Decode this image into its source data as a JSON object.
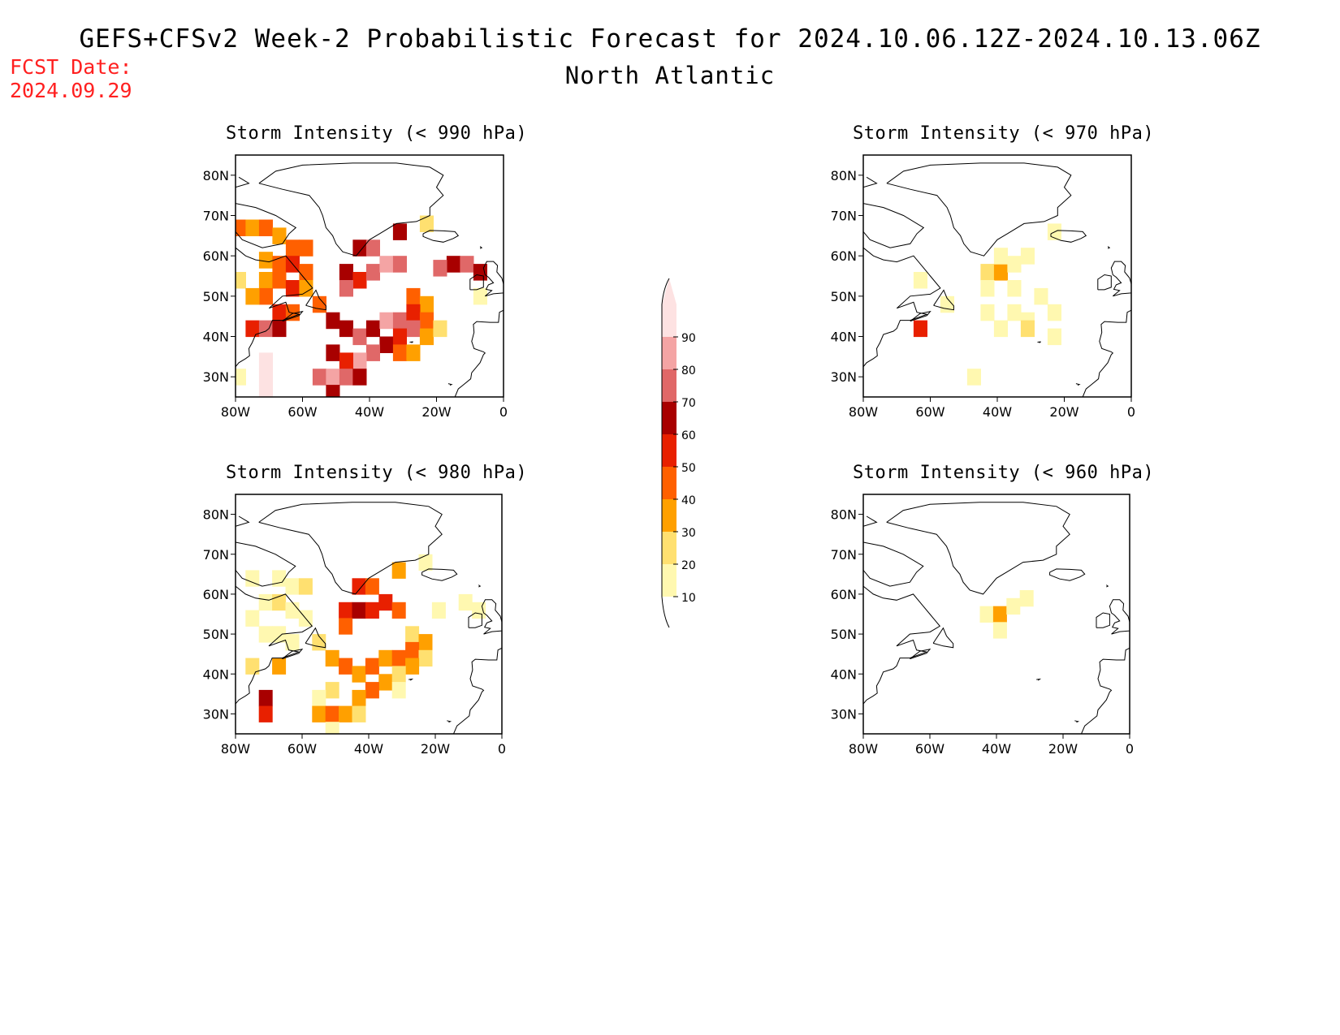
{
  "header": {
    "title": "GEFS+CFSv2 Week-2 Probabilistic Forecast for 2024.10.06.12Z-2024.10.13.06Z",
    "region": "North Atlantic",
    "fcst_label": "FCST Date:",
    "fcst_date": "2024.09.29"
  },
  "axes": {
    "lat_labels": [
      "80N",
      "70N",
      "60N",
      "50N",
      "40N",
      "30N"
    ],
    "lat_values": [
      80,
      70,
      60,
      50,
      40,
      30
    ],
    "lon_labels": [
      "80W",
      "60W",
      "40W",
      "20W",
      "0"
    ],
    "lon_values": [
      -80,
      -60,
      -40,
      -20,
      0
    ],
    "lat_range": [
      25,
      85
    ],
    "lon_range": [
      -80,
      0
    ]
  },
  "colorbar": {
    "levels": [
      10,
      20,
      30,
      40,
      50,
      60,
      70,
      80,
      90
    ],
    "level_labels": [
      "10",
      "20",
      "30",
      "40",
      "50",
      "60",
      "70",
      "80",
      "90"
    ],
    "colors": [
      "#fff8b0",
      "#ffe070",
      "#ffa000",
      "#ff6000",
      "#e82000",
      "#a80000",
      "#e06868",
      "#f4a4a4",
      "#fde2e2"
    ]
  },
  "panels": [
    {
      "title": "Storm Intensity (< 990 hPa)",
      "cells": [
        {
          "lon": -79,
          "lat": 67,
          "v": 4
        },
        {
          "lon": -75,
          "lat": 67,
          "v": 3
        },
        {
          "lon": -71,
          "lat": 67,
          "v": 4
        },
        {
          "lon": -67,
          "lat": 65,
          "v": 3
        },
        {
          "lon": -63,
          "lat": 62,
          "v": 4
        },
        {
          "lon": -59,
          "lat": 62,
          "v": 4
        },
        {
          "lon": -71,
          "lat": 59,
          "v": 3
        },
        {
          "lon": -67,
          "lat": 58,
          "v": 4
        },
        {
          "lon": -63,
          "lat": 58,
          "v": 5
        },
        {
          "lon": -59,
          "lat": 56,
          "v": 4
        },
        {
          "lon": -71,
          "lat": 54,
          "v": 3
        },
        {
          "lon": -67,
          "lat": 54,
          "v": 4
        },
        {
          "lon": -63,
          "lat": 52,
          "v": 5
        },
        {
          "lon": -59,
          "lat": 52,
          "v": 3
        },
        {
          "lon": -55,
          "lat": 48,
          "v": 4
        },
        {
          "lon": -71,
          "lat": 50,
          "v": 4
        },
        {
          "lon": -67,
          "lat": 46,
          "v": 5
        },
        {
          "lon": -63,
          "lat": 46,
          "v": 4
        },
        {
          "lon": -75,
          "lat": 42,
          "v": 5
        },
        {
          "lon": -71,
          "lat": 42,
          "v": 7
        },
        {
          "lon": -67,
          "lat": 42,
          "v": 6
        },
        {
          "lon": -71,
          "lat": 34,
          "v": 9
        },
        {
          "lon": -71,
          "lat": 30,
          "v": 9
        },
        {
          "lon": -71,
          "lat": 26,
          "v": 9
        },
        {
          "lon": -79,
          "lat": 54,
          "v": 2
        },
        {
          "lon": -75,
          "lat": 50,
          "v": 3
        },
        {
          "lon": -79,
          "lat": 30,
          "v": 1
        },
        {
          "lon": -43,
          "lat": 62,
          "v": 6
        },
        {
          "lon": -39,
          "lat": 62,
          "v": 7
        },
        {
          "lon": -31,
          "lat": 66,
          "v": 6
        },
        {
          "lon": -47,
          "lat": 56,
          "v": 6
        },
        {
          "lon": -43,
          "lat": 54,
          "v": 5
        },
        {
          "lon": -39,
          "lat": 56,
          "v": 7
        },
        {
          "lon": -35,
          "lat": 58,
          "v": 8
        },
        {
          "lon": -31,
          "lat": 58,
          "v": 7
        },
        {
          "lon": -47,
          "lat": 52,
          "v": 7
        },
        {
          "lon": -51,
          "lat": 44,
          "v": 6
        },
        {
          "lon": -47,
          "lat": 42,
          "v": 6
        },
        {
          "lon": -43,
          "lat": 40,
          "v": 7
        },
        {
          "lon": -39,
          "lat": 42,
          "v": 6
        },
        {
          "lon": -35,
          "lat": 44,
          "v": 8
        },
        {
          "lon": -31,
          "lat": 44,
          "v": 7
        },
        {
          "lon": -35,
          "lat": 38,
          "v": 6
        },
        {
          "lon": -39,
          "lat": 36,
          "v": 7
        },
        {
          "lon": -43,
          "lat": 34,
          "v": 8
        },
        {
          "lon": -51,
          "lat": 36,
          "v": 6
        },
        {
          "lon": -47,
          "lat": 34,
          "v": 5
        },
        {
          "lon": -55,
          "lat": 30,
          "v": 7
        },
        {
          "lon": -51,
          "lat": 30,
          "v": 8
        },
        {
          "lon": -47,
          "lat": 30,
          "v": 7
        },
        {
          "lon": -43,
          "lat": 30,
          "v": 6
        },
        {
          "lon": -51,
          "lat": 26,
          "v": 6
        },
        {
          "lon": -27,
          "lat": 50,
          "v": 4
        },
        {
          "lon": -23,
          "lat": 48,
          "v": 3
        },
        {
          "lon": -27,
          "lat": 46,
          "v": 5
        },
        {
          "lon": -23,
          "lat": 44,
          "v": 4
        },
        {
          "lon": -27,
          "lat": 42,
          "v": 7
        },
        {
          "lon": -31,
          "lat": 40,
          "v": 5
        },
        {
          "lon": -23,
          "lat": 40,
          "v": 3
        },
        {
          "lon": -31,
          "lat": 36,
          "v": 4
        },
        {
          "lon": -27,
          "lat": 36,
          "v": 3
        },
        {
          "lon": -19,
          "lat": 42,
          "v": 2
        },
        {
          "lon": -23,
          "lat": 68,
          "v": 2
        },
        {
          "lon": -15,
          "lat": 58,
          "v": 6
        },
        {
          "lon": -11,
          "lat": 58,
          "v": 7
        },
        {
          "lon": -7,
          "lat": 56,
          "v": 6
        },
        {
          "lon": -19,
          "lat": 57,
          "v": 7
        },
        {
          "lon": -7,
          "lat": 50,
          "v": 1
        }
      ]
    },
    {
      "title": "Storm Intensity (< 980 hPa)",
      "cells": [
        {
          "lon": -75,
          "lat": 64,
          "v": 1
        },
        {
          "lon": -67,
          "lat": 64,
          "v": 1
        },
        {
          "lon": -63,
          "lat": 62,
          "v": 1
        },
        {
          "lon": -59,
          "lat": 62,
          "v": 2
        },
        {
          "lon": -71,
          "lat": 58,
          "v": 1
        },
        {
          "lon": -67,
          "lat": 58,
          "v": 2
        },
        {
          "lon": -63,
          "lat": 56,
          "v": 1
        },
        {
          "lon": -59,
          "lat": 54,
          "v": 1
        },
        {
          "lon": -75,
          "lat": 54,
          "v": 1
        },
        {
          "lon": -71,
          "lat": 50,
          "v": 1
        },
        {
          "lon": -67,
          "lat": 50,
          "v": 1
        },
        {
          "lon": -63,
          "lat": 48,
          "v": 1
        },
        {
          "lon": -55,
          "lat": 48,
          "v": 2
        },
        {
          "lon": -75,
          "lat": 42,
          "v": 2
        },
        {
          "lon": -67,
          "lat": 42,
          "v": 3
        },
        {
          "lon": -71,
          "lat": 34,
          "v": 6
        },
        {
          "lon": -71,
          "lat": 30,
          "v": 5
        },
        {
          "lon": -43,
          "lat": 62,
          "v": 5
        },
        {
          "lon": -39,
          "lat": 62,
          "v": 4
        },
        {
          "lon": -31,
          "lat": 66,
          "v": 3
        },
        {
          "lon": -47,
          "lat": 56,
          "v": 5
        },
        {
          "lon": -43,
          "lat": 56,
          "v": 6
        },
        {
          "lon": -39,
          "lat": 56,
          "v": 5
        },
        {
          "lon": -35,
          "lat": 58,
          "v": 5
        },
        {
          "lon": -31,
          "lat": 56,
          "v": 4
        },
        {
          "lon": -47,
          "lat": 52,
          "v": 4
        },
        {
          "lon": -51,
          "lat": 44,
          "v": 3
        },
        {
          "lon": -47,
          "lat": 42,
          "v": 4
        },
        {
          "lon": -43,
          "lat": 40,
          "v": 3
        },
        {
          "lon": -39,
          "lat": 42,
          "v": 4
        },
        {
          "lon": -35,
          "lat": 44,
          "v": 3
        },
        {
          "lon": -31,
          "lat": 44,
          "v": 4
        },
        {
          "lon": -35,
          "lat": 38,
          "v": 3
        },
        {
          "lon": -39,
          "lat": 36,
          "v": 4
        },
        {
          "lon": -43,
          "lat": 34,
          "v": 3
        },
        {
          "lon": -51,
          "lat": 36,
          "v": 2
        },
        {
          "lon": -55,
          "lat": 34,
          "v": 1
        },
        {
          "lon": -55,
          "lat": 30,
          "v": 3
        },
        {
          "lon": -51,
          "lat": 30,
          "v": 4
        },
        {
          "lon": -47,
          "lat": 30,
          "v": 3
        },
        {
          "lon": -43,
          "lat": 30,
          "v": 2
        },
        {
          "lon": -51,
          "lat": 26,
          "v": 1
        },
        {
          "lon": -27,
          "lat": 50,
          "v": 2
        },
        {
          "lon": -23,
          "lat": 48,
          "v": 3
        },
        {
          "lon": -27,
          "lat": 46,
          "v": 4
        },
        {
          "lon": -23,
          "lat": 44,
          "v": 2
        },
        {
          "lon": -27,
          "lat": 42,
          "v": 3
        },
        {
          "lon": -31,
          "lat": 40,
          "v": 2
        },
        {
          "lon": -31,
          "lat": 36,
          "v": 1
        },
        {
          "lon": -23,
          "lat": 68,
          "v": 1
        },
        {
          "lon": -11,
          "lat": 58,
          "v": 1
        },
        {
          "lon": -7,
          "lat": 56,
          "v": 1
        },
        {
          "lon": -19,
          "lat": 56,
          "v": 1
        }
      ]
    },
    {
      "title": "Storm Intensity (< 970 hPa)",
      "cells": [
        {
          "lon": -43,
          "lat": 56,
          "v": 2
        },
        {
          "lon": -39,
          "lat": 56,
          "v": 3
        },
        {
          "lon": -35,
          "lat": 58,
          "v": 1
        },
        {
          "lon": -39,
          "lat": 60,
          "v": 1
        },
        {
          "lon": -43,
          "lat": 52,
          "v": 1
        },
        {
          "lon": -35,
          "lat": 52,
          "v": 1
        },
        {
          "lon": -43,
          "lat": 46,
          "v": 1
        },
        {
          "lon": -35,
          "lat": 46,
          "v": 1
        },
        {
          "lon": -31,
          "lat": 44,
          "v": 1
        },
        {
          "lon": -39,
          "lat": 42,
          "v": 1
        },
        {
          "lon": -31,
          "lat": 42,
          "v": 2
        },
        {
          "lon": -23,
          "lat": 46,
          "v": 1
        },
        {
          "lon": -27,
          "lat": 50,
          "v": 1
        },
        {
          "lon": -23,
          "lat": 40,
          "v": 1
        },
        {
          "lon": -47,
          "lat": 30,
          "v": 1
        },
        {
          "lon": -31,
          "lat": 60,
          "v": 1
        },
        {
          "lon": -23,
          "lat": 66,
          "v": 1
        },
        {
          "lon": -55,
          "lat": 48,
          "v": 1
        },
        {
          "lon": -63,
          "lat": 54,
          "v": 1
        },
        {
          "lon": -63,
          "lat": 42,
          "v": 5
        }
      ]
    },
    {
      "title": "Storm Intensity (< 960 hPa)",
      "cells": [
        {
          "lon": -43,
          "lat": 55,
          "v": 1
        },
        {
          "lon": -39,
          "lat": 55,
          "v": 3
        },
        {
          "lon": -35,
          "lat": 57,
          "v": 1
        },
        {
          "lon": -39,
          "lat": 51,
          "v": 1
        },
        {
          "lon": -31,
          "lat": 59,
          "v": 1
        }
      ]
    }
  ]
}
